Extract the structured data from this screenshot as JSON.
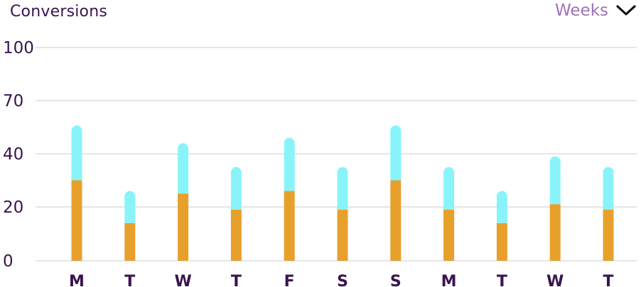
{
  "widget": {
    "title": "Conversions",
    "range_label": "Weeks",
    "range_icon": "chevron-down-icon"
  },
  "colors": {
    "grid": "#e6e6e6",
    "bottom_segment": "#e8a02c",
    "top_segment": "#88f4fa",
    "text": "#3a1450",
    "range_text": "#a072b8"
  },
  "chart_data": {
    "type": "bar",
    "stacked": true,
    "categories": [
      "M",
      "T",
      "W",
      "T",
      "F",
      "S",
      "S",
      "M",
      "T",
      "W",
      "T"
    ],
    "series": [
      {
        "values": [
          30,
          14,
          25,
          19,
          26,
          19,
          30,
          19,
          14,
          21,
          19
        ]
      },
      {
        "values": [
          26,
          12,
          21,
          16,
          23,
          16,
          26,
          16,
          12,
          18,
          16
        ]
      }
    ],
    "y_ticks": [
      "0",
      "20",
      "40",
      "70",
      "100"
    ],
    "grid": true,
    "legend": "none"
  }
}
